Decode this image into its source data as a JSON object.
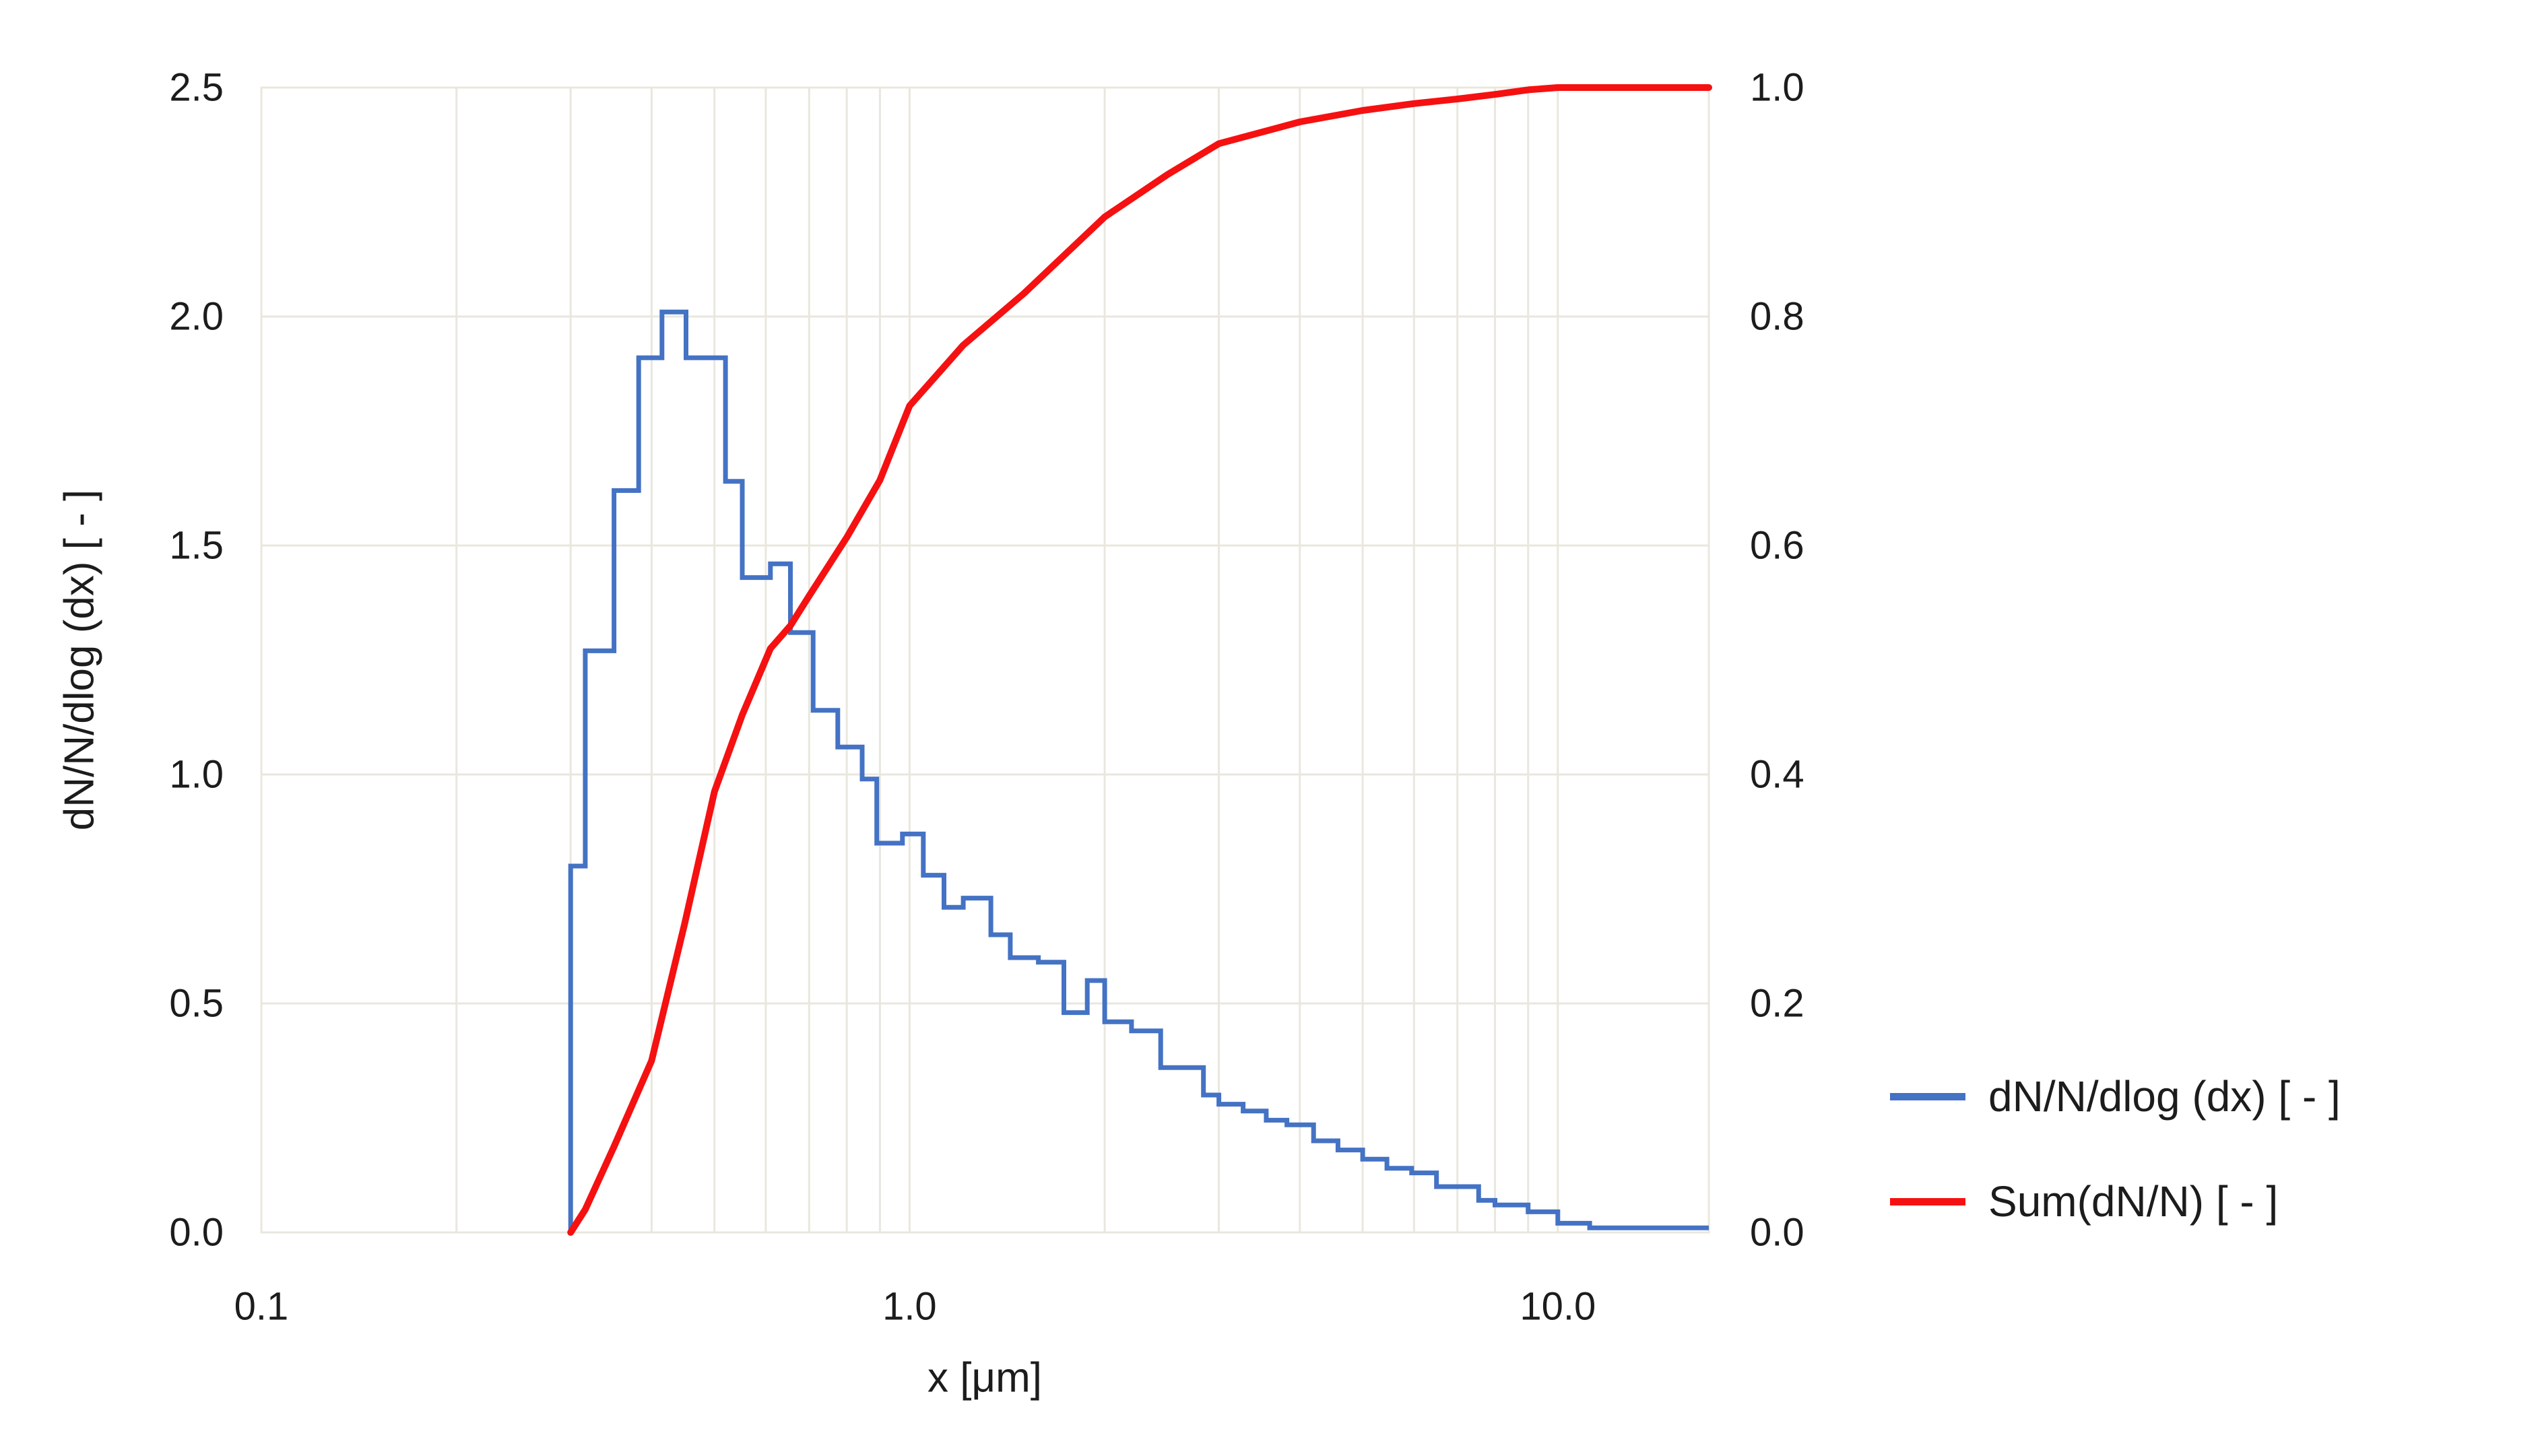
{
  "page": {
    "background": "#FFFFFF",
    "text_color": "#1C1C1C",
    "gridline_color": "#E9E7DE"
  },
  "legend": {
    "position": "right",
    "items": [
      {
        "label": "dN/N/dlog (dx) [ - ]",
        "color": "#4472C4",
        "swatch": "blue-line"
      },
      {
        "label": "Sum(dN/N) [ - ]",
        "color": "#F51111",
        "swatch": "red-line"
      }
    ]
  },
  "chart_data": {
    "type": "line",
    "subtype": "log-binned step histogram with cumulative curve on secondary axis",
    "title": "",
    "grid": true,
    "legend_position": "right",
    "x_axis": {
      "label": "x [μm]",
      "scale": "log",
      "min": 0.1,
      "max": 17.1,
      "ticks": [
        {
          "v": 0.1,
          "label": "0.1"
        },
        {
          "v": 1.0,
          "label": "1.0"
        },
        {
          "v": 10.0,
          "label": "10.0"
        }
      ],
      "minor_gridlines": [
        0.1,
        0.2,
        0.3,
        0.4,
        0.5,
        0.6,
        0.7,
        0.8,
        0.9,
        1,
        2,
        3,
        4,
        5,
        6,
        7,
        8,
        9,
        10
      ]
    },
    "y_axis_left": {
      "label": "dN/N/dlog (dx) [ - ]",
      "min": 0.0,
      "max": 2.5,
      "ticks": [
        {
          "v": 0.0,
          "label": "0.0"
        },
        {
          "v": 0.5,
          "label": "0.5"
        },
        {
          "v": 1.0,
          "label": "1.0"
        },
        {
          "v": 1.5,
          "label": "1.5"
        },
        {
          "v": 2.0,
          "label": "2.0"
        },
        {
          "v": 2.5,
          "label": "2.5"
        }
      ]
    },
    "y_axis_right": {
      "label": "",
      "min": 0.0,
      "max": 1.0,
      "ticks": [
        {
          "v": 0.0,
          "label": "0.0"
        },
        {
          "v": 0.2,
          "label": "0.2"
        },
        {
          "v": 0.4,
          "label": "0.4"
        },
        {
          "v": 0.6,
          "label": "0.6"
        },
        {
          "v": 0.8,
          "label": "0.8"
        },
        {
          "v": 1.0,
          "label": "1.0"
        }
      ]
    },
    "series": [
      {
        "name": "dN/N/dlog (dx) [ - ]",
        "type": "step",
        "y_axis": "left",
        "color": "#4472C4",
        "bin_edges": [
          0.3,
          0.316,
          0.35,
          0.382,
          0.415,
          0.452,
          0.52,
          0.552,
          0.61,
          0.655,
          0.71,
          0.775,
          0.845,
          0.89,
          0.975,
          1.05,
          1.13,
          1.21,
          1.335,
          1.43,
          1.58,
          1.73,
          1.88,
          2.0,
          2.2,
          2.44,
          2.84,
          3.0,
          3.27,
          3.55,
          3.82,
          4.2,
          4.58,
          5.0,
          5.45,
          5.95,
          6.5,
          7.55,
          8.0,
          9.0,
          10.0,
          11.2,
          17.1
        ],
        "values": [
          0.8,
          1.27,
          1.62,
          1.91,
          2.01,
          1.91,
          1.64,
          1.43,
          1.46,
          1.31,
          1.14,
          1.06,
          0.99,
          0.85,
          0.87,
          0.78,
          0.71,
          0.73,
          0.65,
          0.6,
          0.59,
          0.48,
          0.55,
          0.46,
          0.44,
          0.36,
          0.3,
          0.28,
          0.265,
          0.245,
          0.235,
          0.2,
          0.18,
          0.16,
          0.14,
          0.13,
          0.1,
          0.07,
          0.06,
          0.045,
          0.02,
          0.01
        ]
      },
      {
        "name": "Sum(dN/N) [ - ]",
        "type": "line",
        "y_axis": "right",
        "color": "#F51111",
        "points": [
          [
            0.3,
            0.0
          ],
          [
            0.316,
            0.02
          ],
          [
            0.35,
            0.075
          ],
          [
            0.4,
            0.15
          ],
          [
            0.45,
            0.27
          ],
          [
            0.5,
            0.385
          ],
          [
            0.552,
            0.452
          ],
          [
            0.61,
            0.51
          ],
          [
            0.655,
            0.53
          ],
          [
            0.7,
            0.556
          ],
          [
            0.8,
            0.607
          ],
          [
            0.9,
            0.657
          ],
          [
            1.0,
            0.722
          ],
          [
            1.21,
            0.775
          ],
          [
            1.5,
            0.82
          ],
          [
            2.0,
            0.887
          ],
          [
            2.5,
            0.924
          ],
          [
            3.0,
            0.951
          ],
          [
            4.0,
            0.97
          ],
          [
            5.0,
            0.98
          ],
          [
            6.0,
            0.986
          ],
          [
            7.0,
            0.99
          ],
          [
            8.0,
            0.994
          ],
          [
            9.0,
            0.998
          ],
          [
            10.0,
            1.0
          ],
          [
            17.1,
            1.0
          ]
        ]
      }
    ]
  }
}
